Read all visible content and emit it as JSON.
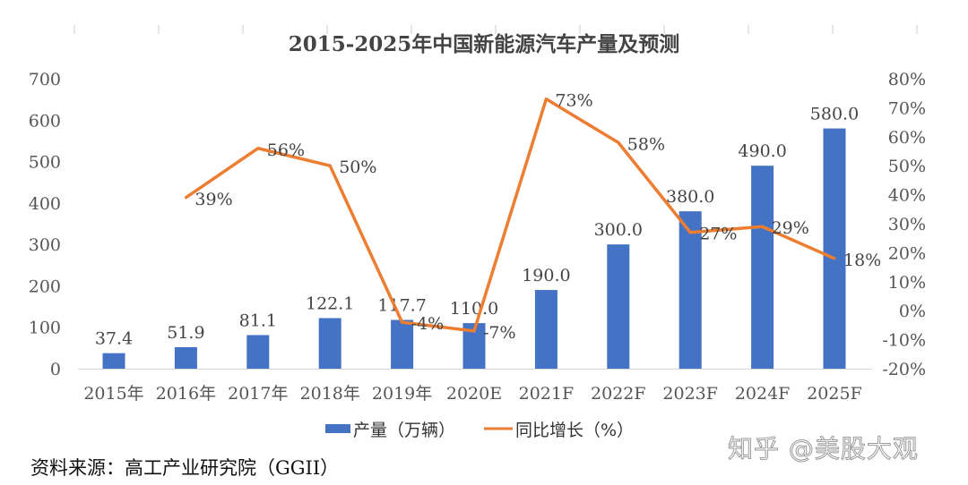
{
  "chart_data": {
    "type": "bar+line",
    "title": "2015-2025年中国新能源汽车产量及预测",
    "categories": [
      "2015年",
      "2016年",
      "2017年",
      "2018年",
      "2019年",
      "2020E",
      "2021F",
      "2022F",
      "2023F",
      "2024F",
      "2025F"
    ],
    "series": [
      {
        "name": "产量（万辆）",
        "type": "bar",
        "axis": "left",
        "color": "#4472C4",
        "values": [
          37.4,
          51.9,
          81.1,
          122.1,
          117.7,
          110.0,
          190.0,
          300.0,
          380.0,
          490.0,
          580.0
        ],
        "labels": [
          "37.4",
          "51.9",
          "81.1",
          "122.1",
          "117.7",
          "110.0",
          "190.0",
          "300.0",
          "380.0",
          "490.0",
          "580.0"
        ]
      },
      {
        "name": "同比增长（%）",
        "type": "line",
        "axis": "right",
        "color": "#ED7D31",
        "values": [
          null,
          39,
          56,
          50,
          -4,
          -7,
          73,
          58,
          27,
          29,
          18
        ],
        "labels": [
          "",
          "39%",
          "56%",
          "50%",
          "-4%",
          "-7%",
          "73%",
          "58%",
          "27%",
          "29%",
          "18%"
        ]
      }
    ],
    "ylim_left": [
      0,
      700
    ],
    "yticks_left": [
      "0",
      "100",
      "200",
      "300",
      "400",
      "500",
      "600",
      "700"
    ],
    "ylim_right": [
      -20,
      80
    ],
    "yticks_right": [
      "-20%",
      "-10%",
      "0%",
      "10%",
      "20%",
      "30%",
      "40%",
      "50%",
      "60%",
      "70%",
      "80%"
    ],
    "legend": "bottom",
    "grid": false
  },
  "source": "资料来源：高工产业研究院（GGII）",
  "watermark": "知乎 @美股大观"
}
